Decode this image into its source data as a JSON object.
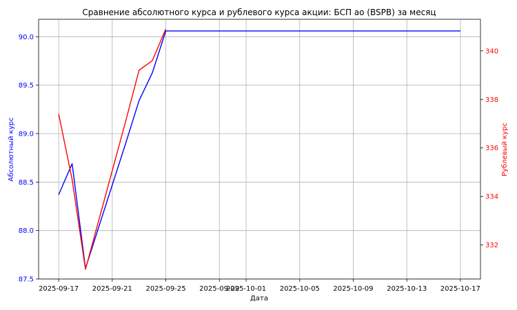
{
  "chart_data": {
    "type": "line",
    "title": "Сравнение абсолютного курса и рублевого курса акции: БСП ао (BSPB) за месяц",
    "xlabel": "Дата",
    "ylabel_left": "Абсолютный курс",
    "ylabel_right": "Рублевый курс",
    "colors": {
      "left": "#0000ff",
      "right": "#ff0000",
      "grid": "#b0b0b0"
    },
    "grid": true,
    "x_ticks": [
      "2025-09-17",
      "2025-09-21",
      "2025-09-25",
      "2025-09-29",
      "2025-10-01",
      "2025-10-05",
      "2025-10-09",
      "2025-10-13",
      "2025-10-17"
    ],
    "y_left": {
      "lim": [
        87.5,
        90.18
      ],
      "ticks": [
        "87.5",
        "88.0",
        "88.5",
        "89.0",
        "89.5",
        "90.0"
      ]
    },
    "y_right": {
      "lim": [
        330.6,
        341.3
      ],
      "ticks": [
        "332",
        "334",
        "336",
        "338",
        "340"
      ]
    },
    "series": [
      {
        "axis": "left",
        "x": [
          "2025-09-17",
          "2025-09-18",
          "2025-09-19",
          "2025-09-22",
          "2025-09-23",
          "2025-09-24",
          "2025-09-25",
          "2025-10-17"
        ],
        "y": [
          88.37,
          88.69,
          87.61,
          88.9,
          89.34,
          89.63,
          90.06,
          90.06
        ]
      },
      {
        "axis": "right",
        "x": [
          "2025-09-17",
          "2025-09-18",
          "2025-09-19",
          "2025-09-22",
          "2025-09-23",
          "2025-09-24",
          "2025-09-25"
        ],
        "y": [
          337.4,
          334.7,
          331.0,
          337.1,
          339.2,
          339.6,
          340.9
        ]
      }
    ]
  }
}
